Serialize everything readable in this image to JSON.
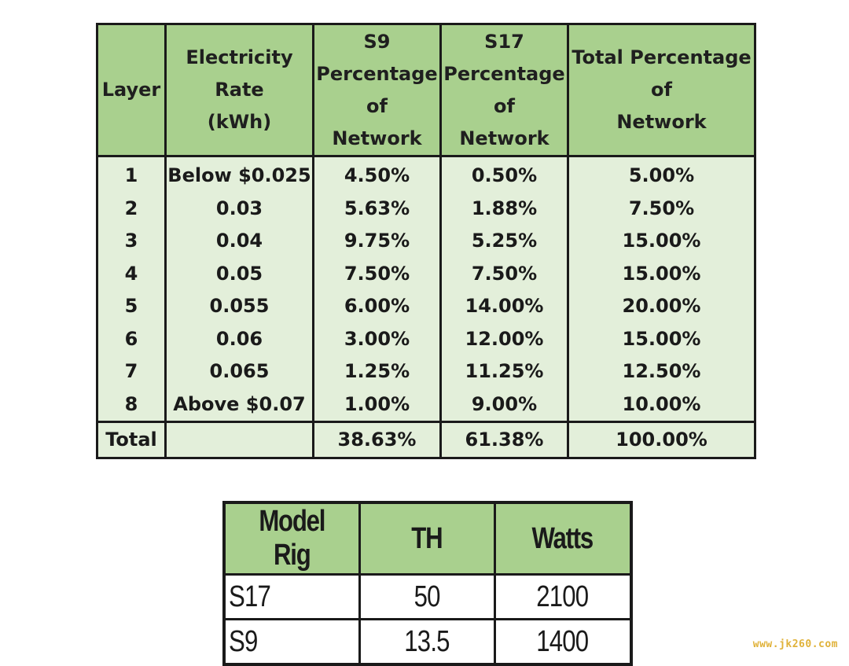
{
  "network_table": {
    "headers": {
      "layer": [
        "Layer"
      ],
      "rate": [
        "Electricity",
        "Rate",
        "(kWh)"
      ],
      "s9": [
        "S9",
        "Percentage",
        "of",
        "Network"
      ],
      "s17": [
        "S17",
        "Percentage",
        "of",
        "Network"
      ],
      "total": [
        "Total Percentage",
        "of",
        "Network"
      ]
    },
    "rows": [
      {
        "layer": "1",
        "rate": "Below $0.025",
        "s9": "4.50%",
        "s17": "0.50%",
        "total": "5.00%"
      },
      {
        "layer": "2",
        "rate": "0.03",
        "s9": "5.63%",
        "s17": "1.88%",
        "total": "7.50%"
      },
      {
        "layer": "3",
        "rate": "0.04",
        "s9": "9.75%",
        "s17": "5.25%",
        "total": "15.00%"
      },
      {
        "layer": "4",
        "rate": "0.05",
        "s9": "7.50%",
        "s17": "7.50%",
        "total": "15.00%"
      },
      {
        "layer": "5",
        "rate": "0.055",
        "s9": "6.00%",
        "s17": "14.00%",
        "total": "20.00%"
      },
      {
        "layer": "6",
        "rate": "0.06",
        "s9": "3.00%",
        "s17": "12.00%",
        "total": "15.00%"
      },
      {
        "layer": "7",
        "rate": "0.065",
        "s9": "1.25%",
        "s17": "11.25%",
        "total": "12.50%"
      },
      {
        "layer": "8",
        "rate": "Above $0.07",
        "s9": "1.00%",
        "s17": "9.00%",
        "total": "10.00%"
      }
    ],
    "footer": {
      "label": "Total",
      "rate": "",
      "s9": "38.63%",
      "s17": "61.38%",
      "total": "100.00%"
    }
  },
  "rig_table": {
    "headers": [
      "Model Rig",
      "TH",
      "Watts"
    ],
    "rows": [
      {
        "model": "S17",
        "th": "50",
        "watts": "2100"
      },
      {
        "model": "S9",
        "th": "13.5",
        "watts": "1400"
      }
    ]
  },
  "watermark": "www.jk260.com",
  "colors": {
    "header_green": "#a9d08e",
    "body_green": "#e3efda",
    "border": "#1a1a1a",
    "watermark": "#e0b23a"
  }
}
